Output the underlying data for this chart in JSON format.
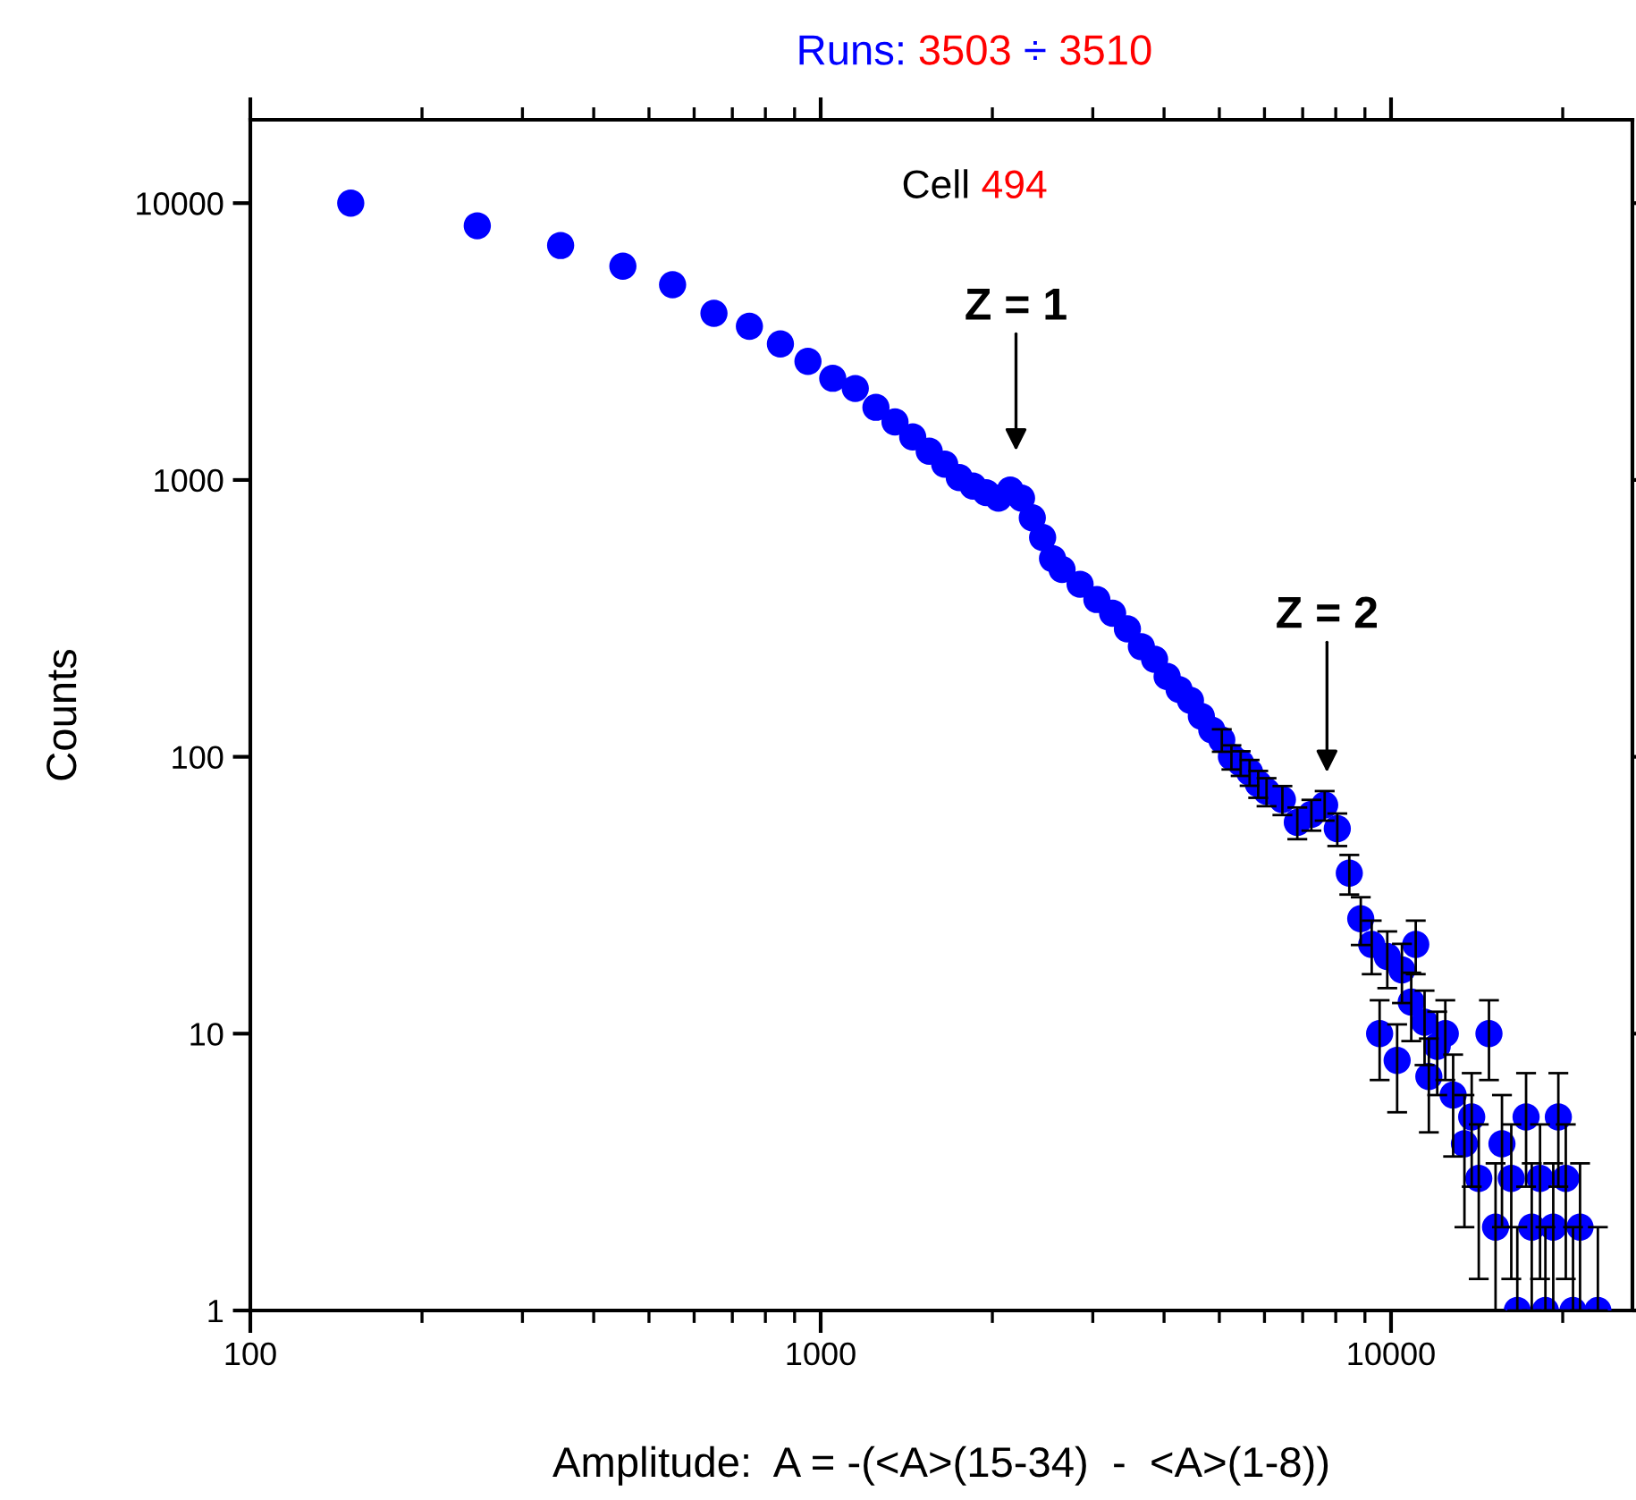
{
  "chart_data": {
    "type": "scatter",
    "title": "Runs: 3503 ÷ 3510",
    "xlabel": "Amplitude:  A = -(<A>(15-34)  -  <A>(1-8))",
    "ylabel": "Counts",
    "annotations": [
      "Cell 494",
      "Z = 1",
      "Z = 2"
    ],
    "log": "xy",
    "xlim": [
      100,
      26500
    ],
    "ylim": [
      1,
      20000
    ],
    "xticks": [
      100,
      1000,
      10000
    ],
    "yticks": [
      1,
      10,
      100,
      1000,
      10000
    ],
    "grid": false,
    "legend": false,
    "marker": "circle",
    "series": [
      {
        "color": "#0000ff",
        "x": [
          150,
          250,
          350,
          450,
          550,
          650,
          750,
          850,
          950,
          1050,
          1150,
          1250,
          1350,
          1450,
          1550,
          1650,
          1750,
          1850,
          1950,
          2050,
          2150,
          2250,
          2350,
          2450,
          2550,
          2650,
          2850,
          3050,
          3250,
          3450,
          3650,
          3850,
          4050,
          4250,
          4450,
          4650,
          4850,
          5050,
          5250,
          5450,
          5650,
          5850,
          6050,
          6450,
          6850,
          7250,
          7650,
          8050,
          8450,
          8850,
          9250,
          9550,
          9850,
          10250,
          10450,
          10850,
          11050,
          11450,
          11650,
          12050,
          12450,
          12850,
          13450,
          13850,
          14250,
          14850,
          15250,
          15650,
          16250,
          16650,
          17250,
          17650,
          18250,
          18650,
          19250,
          19650,
          20250,
          20850,
          21450,
          23050
        ],
        "values": [
          10000,
          8280,
          7030,
          5920,
          5070,
          4000,
          3590,
          3100,
          2680,
          2330,
          2140,
          1830,
          1620,
          1430,
          1270,
          1140,
          1020,
          950,
          900,
          860,
          920,
          860,
          730,
          620,
          520,
          475,
          420,
          370,
          330,
          290,
          250,
          225,
          195,
          175,
          160,
          140,
          125,
          115,
          100,
          95,
          88,
          80,
          75,
          70,
          58,
          62,
          67,
          55,
          38,
          26,
          21,
          10,
          19,
          8,
          17,
          13,
          21,
          11,
          7,
          9,
          10,
          6,
          4,
          5,
          3,
          10,
          2,
          4,
          3,
          1,
          5,
          2,
          3,
          1,
          2,
          5,
          3,
          1,
          2,
          1
        ],
        "errors": [
          null,
          null,
          null,
          null,
          null,
          null,
          null,
          null,
          null,
          null,
          null,
          null,
          null,
          null,
          null,
          null,
          null,
          null,
          null,
          null,
          null,
          null,
          null,
          null,
          null,
          null,
          null,
          null,
          null,
          null,
          null,
          null,
          null,
          null,
          null,
          null,
          null,
          10.7,
          10,
          9.7,
          9.4,
          8.9,
          8.7,
          8.4,
          7.6,
          7.9,
          8.2,
          7.4,
          6.2,
          5.1,
          4.6,
          3.2,
          4.4,
          2.8,
          4.1,
          3.6,
          4.6,
          3.3,
          2.6,
          3,
          3.2,
          2.4,
          [
            2,
            6
          ],
          [
            2.8,
            7.2
          ],
          [
            1.3,
            4.7
          ],
          3.2,
          [
            1,
            3.4
          ],
          [
            2,
            6
          ],
          [
            1.3,
            4.7
          ],
          [
            1,
            2
          ],
          [
            2.8,
            7.2
          ],
          [
            1,
            3.4
          ],
          [
            1.3,
            4.7
          ],
          [
            1,
            2
          ],
          [
            1,
            3.4
          ],
          [
            2.8,
            7.2
          ],
          [
            1.3,
            4.7
          ],
          [
            1,
            2
          ],
          [
            1,
            3.4
          ],
          [
            1,
            2
          ]
        ]
      }
    ]
  }
}
